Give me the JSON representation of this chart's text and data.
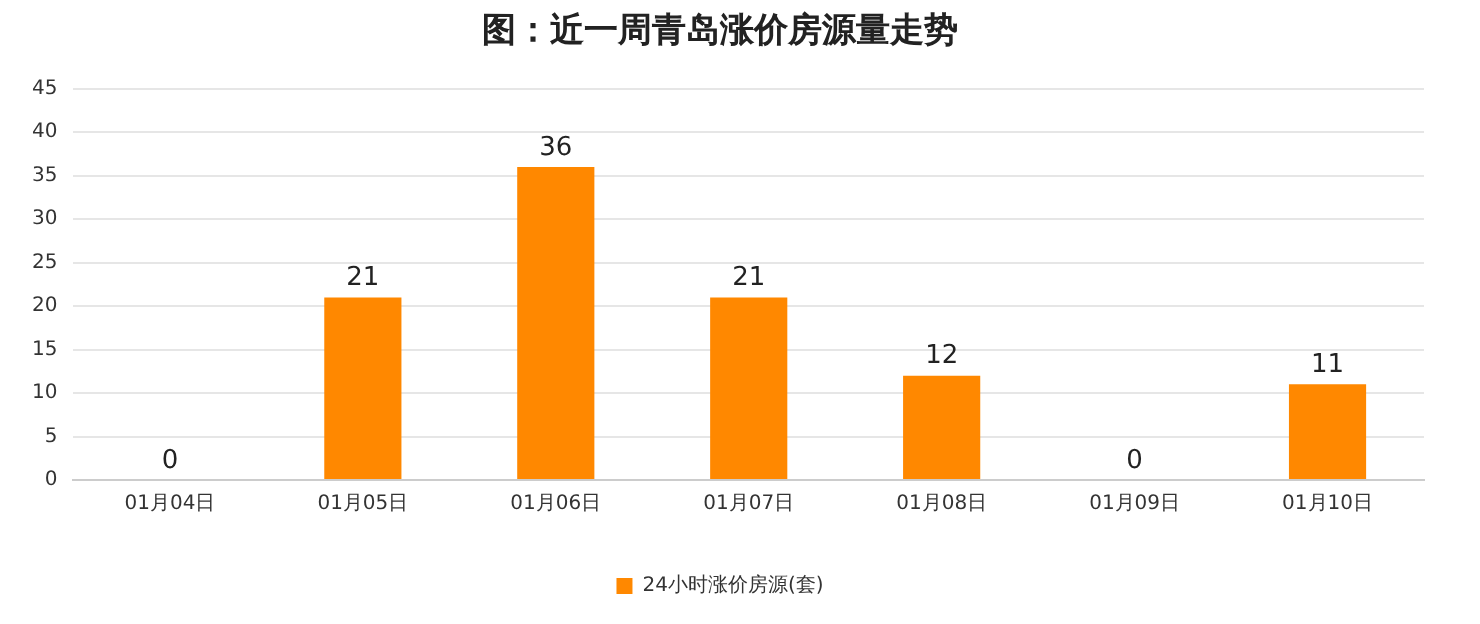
{
  "chart_data": {
    "type": "bar",
    "title": "图：近一周青岛涨价房源量走势",
    "categories": [
      "01月04日",
      "01月05日",
      "01月06日",
      "01月07日",
      "01月08日",
      "01月09日",
      "01月10日"
    ],
    "series": [
      {
        "name": "24小时涨价房源(套)",
        "color": "#ff8800",
        "values": [
          0,
          21,
          36,
          21,
          12,
          0,
          11
        ]
      }
    ],
    "ylim": [
      0,
      45
    ],
    "yticks": [
      0,
      5,
      10,
      15,
      20,
      25,
      30,
      35,
      40,
      45
    ],
    "grid": "y",
    "legend": "bottom",
    "data_labels": true
  }
}
